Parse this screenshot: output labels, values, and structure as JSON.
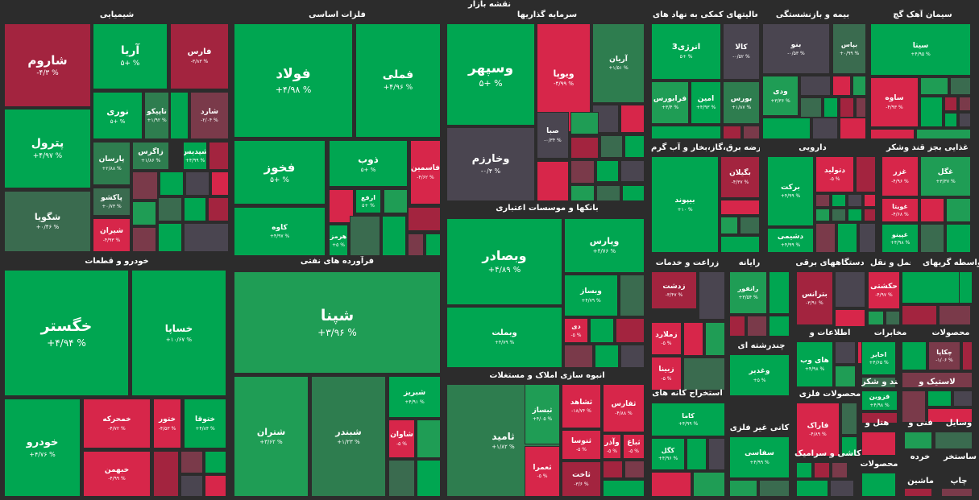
{
  "title": "نقشه بازار",
  "colors": {
    "background": "#2c2c2c",
    "strong_green": "#00a651",
    "green": "#1f9d55",
    "mid_green": "#2e7d4f",
    "dark_green": "#3a6b4f",
    "neutral": "#4a4550",
    "dark_red": "#7a3a4a",
    "red": "#a3243f",
    "strong_red": "#d7264a"
  },
  "chart_data": {
    "type": "treemap",
    "sectors": [
      {
        "name": "شیمیایی",
        "tiles": [
          {
            "name": "شاروم",
            "change": "-۴/۳ %",
            "value": -4.3
          },
          {
            "name": "آریا",
            "change": "۵+ %",
            "value": 5
          },
          {
            "name": "فارس",
            "change": "-۳/۸۳ %",
            "value": -3.83
          },
          {
            "name": "نوری",
            "change": "۵+ %",
            "value": 5
          },
          {
            "name": "تاپیکو",
            "change": "+۱/۹۲ %",
            "value": 1.92
          },
          {
            "name": "شارد",
            "change": "-۲/۰۴ %",
            "value": -2.04
          },
          {
            "name": "پترول",
            "change": "+۴/۹۷ %",
            "value": 4.97
          },
          {
            "name": "پارسان",
            "change": "+۲/۸۸ %",
            "value": 2.88
          },
          {
            "name": "زاگرس",
            "change": "+۱/۸۶ %",
            "value": 1.86
          },
          {
            "name": "شپدیس",
            "change": "+۴/۹۹ %",
            "value": 4.99
          },
          {
            "name": "شگویا",
            "change": "+۰/۴۶ %",
            "value": 0.46
          },
          {
            "name": "پاکشو",
            "change": "+۰/۷۳ %",
            "value": 0.73
          },
          {
            "name": "شیران",
            "change": "-۴/۹۳ %",
            "value": -4.93
          }
        ]
      },
      {
        "name": "فلزات اساسی",
        "tiles": [
          {
            "name": "فولاد",
            "change": "+۴/۹۸ %",
            "value": 4.98
          },
          {
            "name": "فملی",
            "change": "+۴/۹۶ %",
            "value": 4.96
          },
          {
            "name": "فخوز",
            "change": "۵+ %",
            "value": 5
          },
          {
            "name": "ذوب",
            "change": "۵+ %",
            "value": 5
          },
          {
            "name": "فاسمین",
            "change": "-۴/۶۲ %",
            "value": -4.62
          },
          {
            "name": "ارفع",
            "change": "۵+ %",
            "value": 5
          },
          {
            "name": "کاوه",
            "change": "+۴/۹۷ %",
            "value": 4.97
          },
          {
            "name": "هرمز",
            "change": "+۵ %",
            "value": 5
          }
        ]
      },
      {
        "name": "سرمایه گذاریها",
        "tiles": [
          {
            "name": "وسپهر",
            "change": "۵+ %",
            "value": 5
          },
          {
            "name": "ویوپا",
            "change": "-۴/۹۹ %",
            "value": -4.99
          },
          {
            "name": "آریان",
            "change": "+۱/۵۱ %",
            "value": 1.51
          },
          {
            "name": "وخارزم",
            "change": "-۰/۴ %",
            "value": -0.4
          },
          {
            "name": "صبا",
            "change": "-۰/۳۴ %",
            "value": -0.34
          }
        ]
      },
      {
        "name": "فعالیتهای کمکی به نهاد های",
        "tiles": [
          {
            "name": "انرژی3",
            "change": "۵+ %",
            "value": 5
          },
          {
            "name": "کالا",
            "change": "-۰/۵۲ %",
            "value": -0.52
          },
          {
            "name": "بورس",
            "change": "+۱/۸۷ %",
            "value": 1.87
          },
          {
            "name": "فرابورس",
            "change": "+۳/۴ %",
            "value": 3.4
          },
          {
            "name": "امین",
            "change": "+۴/۹۳ %",
            "value": 4.93
          }
        ]
      },
      {
        "name": "بیمه و بازنشستگی",
        "tiles": [
          {
            "name": "بنو",
            "change": "-۰/۵۳ %",
            "value": -0.53
          },
          {
            "name": "بپاس",
            "change": "+۰/۹۹ %",
            "value": 0.99
          },
          {
            "name": "ودی",
            "change": "+۳/۳۶ %",
            "value": 3.36
          }
        ]
      },
      {
        "name": "سیمان آهک گچ",
        "tiles": [
          {
            "name": "سیتا",
            "change": "+۴/۹۵ %",
            "value": 4.95
          },
          {
            "name": "ساوه",
            "change": "-۴/۹۳ %",
            "value": -4.93
          }
        ]
      },
      {
        "name": "بانکها و موسسات اعتباری",
        "tiles": [
          {
            "name": "وبصادر",
            "change": "+۴/۸۹ %",
            "value": 4.89
          },
          {
            "name": "وپارس",
            "change": "+۴/۷۶ %",
            "value": 4.76
          },
          {
            "name": "وبساز",
            "change": "+۴/۷۹ %",
            "value": 4.79
          },
          {
            "name": "وبملت",
            "change": "+۴/۷۹ %",
            "value": 4.79
          },
          {
            "name": "دی",
            "change": "-۵ %",
            "value": -5
          }
        ]
      },
      {
        "name": "عرضه برق،گاز،بخار و آب گرم",
        "tiles": [
          {
            "name": "بیپوند",
            "change": "+۱۰ %",
            "value": 10
          },
          {
            "name": "بگیلان",
            "change": "-۴/۳۷ %",
            "value": -4.37
          }
        ]
      },
      {
        "name": "دارویی",
        "tiles": [
          {
            "name": "برکت",
            "change": "+۴/۹۹ %",
            "value": 4.99
          },
          {
            "name": "دتولید",
            "change": "-۵ %",
            "value": -5
          },
          {
            "name": "دشیمی",
            "change": "+۴/۹۹ %",
            "value": 4.99
          }
        ]
      },
      {
        "name": "غذایی بجز قند وشکر",
        "tiles": [
          {
            "name": "غزر",
            "change": "-۴/۹۶ %",
            "value": -4.96
          },
          {
            "name": "غگل",
            "change": "+۳/۳۷ %",
            "value": 3.37
          },
          {
            "name": "غویتا",
            "change": "-۴/۶۸ %",
            "value": -4.68
          },
          {
            "name": "غپینو",
            "change": "+۴/۹۸ %",
            "value": 4.98
          }
        ]
      },
      {
        "name": "خودرو و قطعات",
        "tiles": [
          {
            "name": "خگستر",
            "change": "+۴/۹۴ %",
            "value": 4.94
          },
          {
            "name": "خساپا",
            "change": "+۱۰/۶۷ %",
            "value": 10.67
          },
          {
            "name": "خودرو",
            "change": "+۴/۷۶ %",
            "value": 4.76
          },
          {
            "name": "خمحرکه",
            "change": "-۴/۷۲ %",
            "value": -4.72
          },
          {
            "name": "ختور",
            "change": "-۴/۵۳ %",
            "value": -4.53
          },
          {
            "name": "ختوقا",
            "change": "+۴/۸۴ %",
            "value": 4.84
          },
          {
            "name": "خبهمن",
            "change": "-۴/۹۹ %",
            "value": -4.99
          }
        ]
      },
      {
        "name": "فرآورده های نفتی",
        "tiles": [
          {
            "name": "شپنا",
            "change": "+۳/۹۶ %",
            "value": 3.96
          },
          {
            "name": "شتران",
            "change": "+۳/۶۲ %",
            "value": 3.62
          },
          {
            "name": "شبندر",
            "change": "+۱/۲۳ %",
            "value": 1.23
          },
          {
            "name": "شبریز",
            "change": "+۴/۹۱ %",
            "value": 4.91
          },
          {
            "name": "شاوان",
            "change": "-۵ %",
            "value": -5
          }
        ]
      },
      {
        "name": "انبوه سازی املاک و مستغلات",
        "tiles": [
          {
            "name": "ثامید",
            "change": "+۱/۸۲ %",
            "value": 1.82
          },
          {
            "name": "ثبساز",
            "change": "+۴/۰۵ %",
            "value": 4.05
          },
          {
            "name": "ثشاهد",
            "change": "-۱۸/۷۴ %",
            "value": -18.74
          },
          {
            "name": "ثفارس",
            "change": "-۴/۸۸ %",
            "value": -4.88
          },
          {
            "name": "ثنوسا",
            "change": "-۵ %",
            "value": -5
          },
          {
            "name": "وآذر",
            "change": "-۵ %",
            "value": -5
          },
          {
            "name": "ثباغ",
            "change": "-۵ %",
            "value": -5
          },
          {
            "name": "ثعمرا",
            "change": "-۵ %",
            "value": -5
          },
          {
            "name": "ثاخت",
            "change": "-۳/۶ %",
            "value": -3.6
          }
        ]
      },
      {
        "name": "زراعت و خدمات",
        "tiles": [
          {
            "name": "زدشت",
            "change": "-۳/۴۷ %",
            "value": -3.47
          },
          {
            "name": "زملارد",
            "change": "-۵ %",
            "value": -5
          },
          {
            "name": "زبینا",
            "change": "-۵ %",
            "value": -5
          }
        ]
      },
      {
        "name": "رایانه",
        "tiles": [
          {
            "name": "رانفور",
            "change": "+۳/۵۴ %",
            "value": 3.54
          }
        ]
      },
      {
        "name": "دستگاههای برقی",
        "tiles": [
          {
            "name": "بترانس",
            "change": "-۳/۹۱ %",
            "value": -3.91
          }
        ]
      },
      {
        "name": "حمل و نقل",
        "tiles": [
          {
            "name": "حکشتی",
            "change": "-۴/۹۷ %",
            "value": -4.97
          }
        ]
      },
      {
        "name": "واسطه گریهای",
        "tiles": []
      },
      {
        "name": "چندرشته ای",
        "tiles": [
          {
            "name": "وغدیر",
            "change": "+۵ %",
            "value": 5
          }
        ]
      },
      {
        "name": "اطلاعات و",
        "tiles": [
          {
            "name": "های وب",
            "change": "+۴/۹۸ %",
            "value": 4.98
          }
        ]
      },
      {
        "name": "مخابرات",
        "tiles": [
          {
            "name": "اخابر",
            "change": "+۴/۶۵ %",
            "value": 4.65
          }
        ]
      },
      {
        "name": "محصولات",
        "tiles": [
          {
            "name": "چکاپا",
            "change": "-۱/۰۶ %",
            "value": -1.06
          }
        ]
      },
      {
        "name": "استخراج کانه های",
        "tiles": [
          {
            "name": "کاما",
            "change": "+۴/۹۹ %",
            "value": 4.99
          },
          {
            "name": "کگل",
            "change": "+۴/۹۶ %",
            "value": 4.96
          }
        ]
      },
      {
        "name": "محصولات فلزی",
        "tiles": [
          {
            "name": "فاراک",
            "change": "-۴/۸۹ %",
            "value": -4.89
          }
        ]
      },
      {
        "name": "قند و شکر",
        "tiles": [
          {
            "name": "قزوین",
            "change": "+۴/۹۸ %",
            "value": 4.98
          }
        ]
      },
      {
        "name": "لاستیک و",
        "tiles": []
      },
      {
        "name": "کانی غیر فلزی",
        "tiles": [
          {
            "name": "سفاسی",
            "change": "+۴/۹۹ %",
            "value": 4.99
          }
        ]
      },
      {
        "name": "کاشی و سرامیک",
        "tiles": []
      },
      {
        "name": "هتل و",
        "tiles": []
      },
      {
        "name": "فنی و",
        "tiles": []
      },
      {
        "name": "وسایل",
        "tiles": []
      },
      {
        "name": "محصولات",
        "tiles": []
      },
      {
        "name": "خرده",
        "tiles": []
      },
      {
        "name": "ساستخر",
        "tiles": []
      },
      {
        "name": "ماشین",
        "tiles": []
      },
      {
        "name": "چاپ",
        "tiles": []
      }
    ]
  }
}
